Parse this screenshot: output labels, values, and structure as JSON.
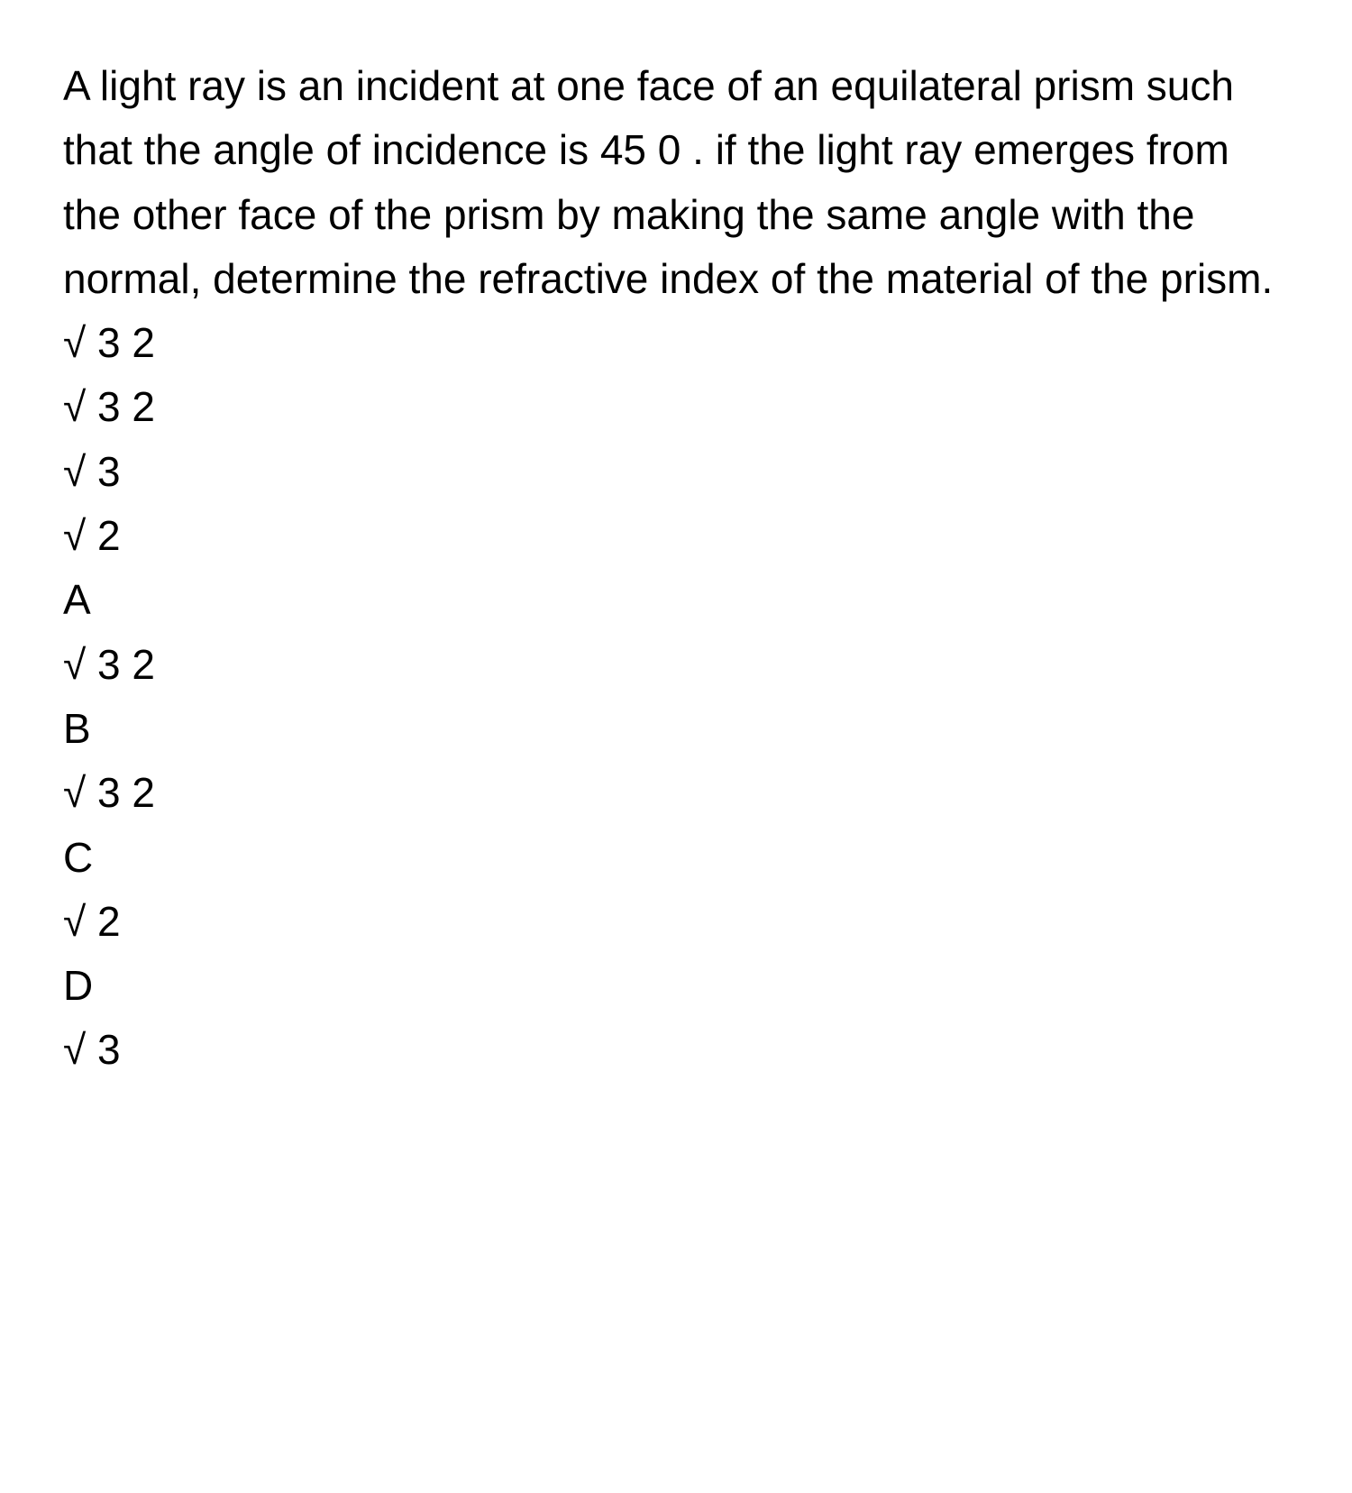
{
  "question": {
    "text": "A light ray is an incident at one face of an equilateral prism such that the angle of incidence is 45 0 . if the light ray emerges from the other face of the prism by making the same angle with the normal, determine the refractive index of the material of the prism. √ 3 2"
  },
  "preOptions": {
    "line1": "√ 3 2",
    "line2": "√ 3",
    "line3": "√ 2"
  },
  "options": {
    "a": {
      "label": "A",
      "value": "√ 3 2"
    },
    "b": {
      "label": "B",
      "value": "√ 3 2"
    },
    "c": {
      "label": "C",
      "value": "√ 2"
    },
    "d": {
      "label": "D",
      "value": "√ 3"
    }
  }
}
